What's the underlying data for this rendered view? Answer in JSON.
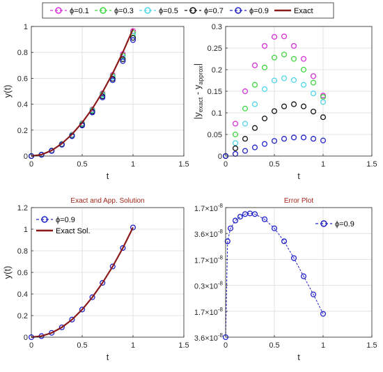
{
  "top_legend": {
    "entries": [
      {
        "label": "ϕ=0.1",
        "color": "#d62fd6",
        "style": "circle-dash"
      },
      {
        "label": "ϕ=0.3",
        "color": "#3fd63f",
        "style": "circle-dash"
      },
      {
        "label": "ϕ=0.5",
        "color": "#4fd6e6",
        "style": "circle-dash"
      },
      {
        "label": "ϕ=0.7",
        "color": "#111111",
        "style": "circle-dash"
      },
      {
        "label": "ϕ=0.9",
        "color": "#2020c8",
        "style": "circle-dash"
      },
      {
        "label": "Exact",
        "color": "#8b1a1a",
        "style": "line"
      }
    ]
  },
  "chart_data": [
    {
      "id": "solutions",
      "type": "scatter",
      "title": "",
      "xlabel": "t",
      "ylabel": "y(t)",
      "xlim": [
        0,
        1.5
      ],
      "ylim": [
        0,
        1
      ],
      "xticks": [
        "0",
        "0.5",
        "1",
        "1.5"
      ],
      "yticks": [
        "0",
        "0.2",
        "0.4",
        "0.6",
        "0.8",
        "1"
      ],
      "grid": true,
      "x": [
        0,
        0.1,
        0.2,
        0.3,
        0.4,
        0.5,
        0.6,
        0.7,
        0.8,
        0.9,
        1.0
      ],
      "series": [
        {
          "name": "ϕ=0.1",
          "color": "#d62fd6",
          "values": [
            0,
            0.011,
            0.043,
            0.094,
            0.165,
            0.253,
            0.359,
            0.484,
            0.626,
            0.787,
            0.965
          ]
        },
        {
          "name": "ϕ=0.3",
          "color": "#3fd63f",
          "values": [
            0,
            0.011,
            0.042,
            0.093,
            0.163,
            0.25,
            0.355,
            0.478,
            0.618,
            0.776,
            0.95
          ]
        },
        {
          "name": "ϕ=0.5",
          "color": "#4fd6e6",
          "values": [
            0,
            0.01,
            0.041,
            0.091,
            0.16,
            0.246,
            0.35,
            0.47,
            0.608,
            0.762,
            0.93
          ]
        },
        {
          "name": "ϕ=0.7",
          "color": "#111111",
          "values": [
            0,
            0.01,
            0.04,
            0.089,
            0.156,
            0.241,
            0.343,
            0.461,
            0.596,
            0.747,
            0.912
          ]
        },
        {
          "name": "ϕ=0.9",
          "color": "#2020c8",
          "values": [
            0,
            0.01,
            0.039,
            0.087,
            0.153,
            0.236,
            0.336,
            0.452,
            0.585,
            0.733,
            0.895
          ]
        },
        {
          "name": "Exact",
          "color": "#8b1a1a",
          "line": true,
          "values": [
            0,
            0.011,
            0.043,
            0.096,
            0.168,
            0.258,
            0.366,
            0.493,
            0.638,
            0.801,
            0.98
          ]
        }
      ]
    },
    {
      "id": "abs-error",
      "type": "scatter",
      "title": "",
      "xlabel": "t",
      "ylabel": "|y_exact - y_approx|",
      "xlim": [
        0,
        1.5
      ],
      "ylim": [
        0,
        0.3
      ],
      "xticks": [
        "0",
        "0.5",
        "1",
        "1.5"
      ],
      "yticks": [
        "0",
        "0.05",
        "0.1",
        "0.15",
        "0.2",
        "0.25",
        "0.3"
      ],
      "grid": true,
      "x": [
        0,
        0.1,
        0.2,
        0.3,
        0.4,
        0.5,
        0.6,
        0.7,
        0.8,
        0.9,
        1.0
      ],
      "series": [
        {
          "name": "ϕ=0.1",
          "color": "#d62fd6",
          "values": [
            0,
            0.075,
            0.15,
            0.21,
            0.255,
            0.276,
            0.277,
            0.255,
            0.225,
            0.185,
            0.14
          ]
        },
        {
          "name": "ϕ=0.3",
          "color": "#3fd63f",
          "values": [
            0,
            0.05,
            0.11,
            0.165,
            0.205,
            0.228,
            0.235,
            0.225,
            0.2,
            0.17,
            0.137
          ]
        },
        {
          "name": "ϕ=0.5",
          "color": "#4fd6e6",
          "values": [
            0,
            0.03,
            0.075,
            0.12,
            0.155,
            0.175,
            0.18,
            0.176,
            0.165,
            0.145,
            0.125
          ]
        },
        {
          "name": "ϕ=0.7",
          "color": "#111111",
          "values": [
            0,
            0.018,
            0.04,
            0.065,
            0.087,
            0.104,
            0.115,
            0.12,
            0.115,
            0.103,
            0.09
          ]
        },
        {
          "name": "ϕ=0.9",
          "color": "#2020c8",
          "values": [
            0,
            0.005,
            0.012,
            0.02,
            0.028,
            0.035,
            0.04,
            0.043,
            0.043,
            0.04,
            0.036
          ]
        }
      ]
    },
    {
      "id": "exact-app",
      "type": "scatter",
      "title": "Exact and App. Solution",
      "xlabel": "t",
      "ylabel": "y(t)",
      "xlim": [
        0,
        1.5
      ],
      "ylim": [
        0,
        1.2
      ],
      "xticks": [
        "0",
        "0.5",
        "1",
        "1.5"
      ],
      "yticks": [
        "0",
        "0.2",
        "0.4",
        "0.6",
        "0.8",
        "1",
        "1.2"
      ],
      "grid": true,
      "legend": "top-left",
      "x": [
        0,
        0.1,
        0.2,
        0.3,
        0.4,
        0.5,
        0.6,
        0.7,
        0.8,
        0.9,
        1.0
      ],
      "series": [
        {
          "name": "ϕ=0.9",
          "color": "#2020c8",
          "values": [
            0,
            0.01,
            0.04,
            0.091,
            0.163,
            0.256,
            0.37,
            0.503,
            0.655,
            0.826,
            1.016
          ]
        },
        {
          "name": "Exact Sol.",
          "color": "#8b1a1a",
          "line": true,
          "values": [
            0,
            0.01,
            0.04,
            0.091,
            0.163,
            0.256,
            0.37,
            0.503,
            0.655,
            0.826,
            1.016
          ]
        }
      ]
    },
    {
      "id": "error-plot",
      "type": "scatter",
      "title": "Error Plot",
      "xlabel": "t",
      "ylabel": "",
      "xlim": [
        0,
        1.5
      ],
      "ylim": [
        0,
        1
      ],
      "xticks": [
        "0",
        "0.5",
        "1",
        "1.5"
      ],
      "yticks": [
        {
          "base": "3.6×10",
          "exp": "-8"
        },
        {
          "base": "1.7×10",
          "exp": "-8"
        },
        {
          "base": "0.3×10",
          "exp": "-8"
        },
        {
          "base": "1.7×10",
          "exp": "-8"
        },
        {
          "base": "3.6×10",
          "exp": "-8"
        },
        {
          "base": "1.7×10",
          "exp": "-8"
        }
      ],
      "grid": true,
      "legend": "top-right",
      "x": [
        0,
        0.02,
        0.05,
        0.1,
        0.15,
        0.2,
        0.25,
        0.3,
        0.4,
        0.5,
        0.6,
        0.7,
        0.8,
        0.9,
        1.0
      ],
      "series": [
        {
          "name": "ϕ=0.9",
          "color": "#2020c8",
          "values": [
            0,
            0.74,
            0.84,
            0.9,
            0.93,
            0.95,
            0.955,
            0.95,
            0.91,
            0.84,
            0.74,
            0.61,
            0.47,
            0.33,
            0.18
          ]
        }
      ]
    }
  ]
}
